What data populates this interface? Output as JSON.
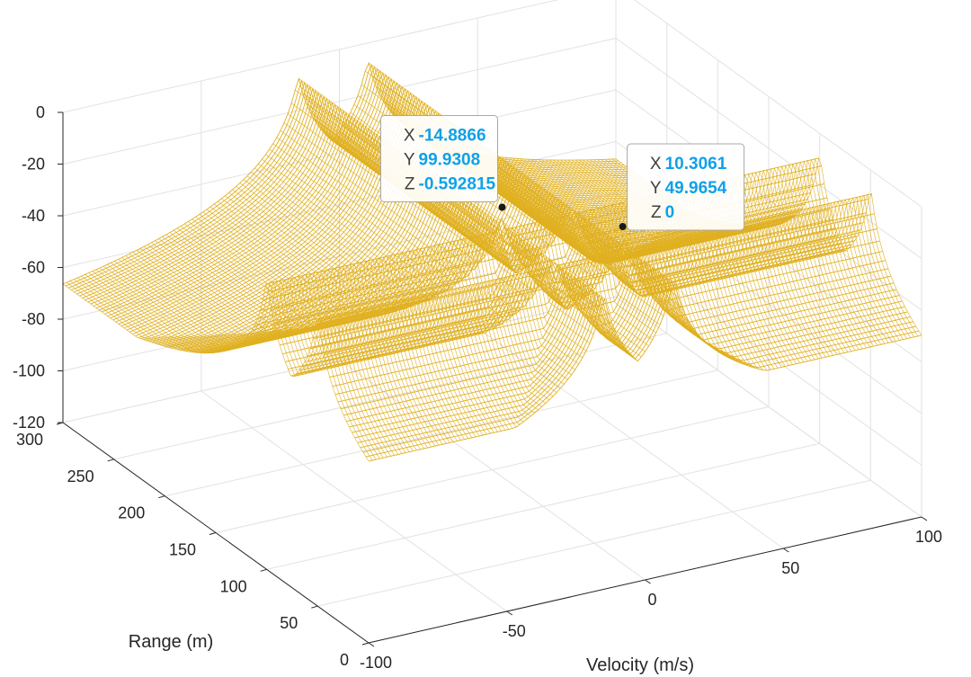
{
  "chart_data": {
    "type": "surface3d",
    "title": "",
    "xlabel": "Velocity (m/s)",
    "ylabel": "Range (m)",
    "zlabel": "",
    "xlim": [
      -100,
      100
    ],
    "ylim": [
      0,
      300
    ],
    "zlim": [
      -120,
      0
    ],
    "x_ticks": [
      "-100",
      "-50",
      "0",
      "50",
      "100"
    ],
    "y_ticks": [
      "0",
      "50",
      "100",
      "150",
      "200",
      "250",
      "300"
    ],
    "z_ticks": [
      "0",
      "-20",
      "-40",
      "-60",
      "-80",
      "-100",
      "-120"
    ],
    "grid": true,
    "colormap": "parula",
    "peaks": [
      {
        "velocity": -14.8866,
        "range": 99.9308,
        "level": -0.592815
      },
      {
        "velocity": 10.3061,
        "range": 49.9654,
        "level": 0
      }
    ],
    "datatips": [
      {
        "x_label": "X",
        "x_value": "-14.8866",
        "y_label": "Y",
        "y_value": "99.9308",
        "z_label": "Z",
        "z_value": "-0.592815"
      },
      {
        "x_label": "X",
        "x_value": "10.3061",
        "y_label": "Y",
        "y_value": "49.9654",
        "z_label": "Z",
        "z_value": "0"
      }
    ],
    "colors": {
      "surface": "#000a8c",
      "datatip_value": "#0ea1ea",
      "axis": "#262626",
      "grid": "#e2e2e2"
    }
  }
}
